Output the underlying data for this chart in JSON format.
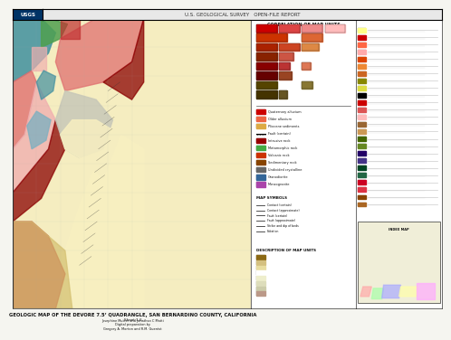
{
  "title": "GEOLOGIC MAP OF THE DEVORE 7.5’ QUADRANGLE, SAN BERNARDINO COUNTY, CALIFORNIA",
  "subtitle": "Sheet 1-6",
  "authors": "Josephine Mutter and Jonathan C Matti\nDigital preparation by\nGregory A. Morton and R.M. Guentst",
  "bg_color": "#f5f5f0",
  "map_bg": "#fffef0",
  "border_color": "#333333",
  "usgs_logo_color": "#003366",
  "header_color": "#cccccc",
  "map_colors": {
    "pink_light": "#f0b0b0",
    "pink_medium": "#e07070",
    "pink_dark": "#c03030",
    "red_dark": "#8b0000",
    "brown_dark": "#4a2010",
    "blue_teal": "#4090a0",
    "blue_light": "#80b0c0",
    "green_medium": "#50a050",
    "yellow_light": "#f8f0c0",
    "yellow_tan": "#d4c070",
    "tan": "#d4b870",
    "cream": "#f5edc0",
    "gray_light": "#d0d0d0",
    "gray_medium": "#909090",
    "purple": "#8060a0",
    "orange": "#e08030"
  },
  "legend_box_colors": [
    "#cc0000",
    "#dd4444",
    "#ee8888",
    "#ffaaaa",
    "#cc6600",
    "#dd8833",
    "#eeaa66",
    "#888800",
    "#aaaa44",
    "#4488cc",
    "#66aadd",
    "#226622",
    "#448844",
    "#884400",
    "#aa6622",
    "#440044",
    "#664466",
    "#cccc00",
    "#dddd44"
  ],
  "inset_map_colors": [
    "#ffaaaa",
    "#aaffaa",
    "#aaaaff",
    "#ffff88",
    "#ff88ff"
  ],
  "panel_bg": "#ffffff",
  "text_color": "#111111",
  "line_color": "#222222",
  "scale_bar_color": "#000000"
}
